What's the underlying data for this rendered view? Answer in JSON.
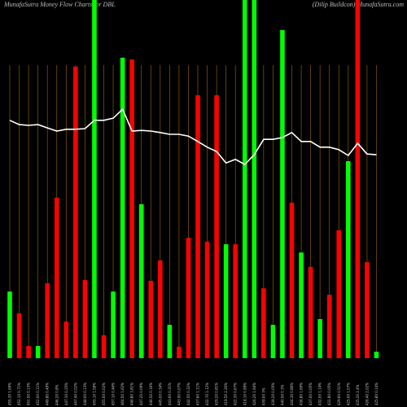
{
  "chart_data": {
    "type": "bar",
    "title": "MunafaSutra  Money Flow  Charts for DBL",
    "subtitle": "(Dilip Buildcon) MunafaSutra.com",
    "categories": [
      "455.30 1.69%",
      "452.10 0.71%",
      "451.50 0.13%",
      "452.00 0.11%",
      "449.80 0.49%",
      "446.20 0.8%",
      "447.30 0.25%",
      "447.40 0.02%",
      "448.00 0.13%",
      "455.10 1.58%",
      "455.00 0.02%",
      "457.10 0.46%",
      "464.50 1.62%",
      "446.80 3.81%",
      "447.20 0.09%",
      "446.50 0.16%",
      "445.00 0.34%",
      "443.60 0.31%",
      "443.90 0.07%",
      "442.50 0.32%",
      "437.60 1.11%",
      "432.70 1.12%",
      "429.20 0.81%",
      "419.50 2.26%",
      "422.30 0.67%",
      "418.10 0.99%",
      "426.20 1.94%",
      "439.00 3%",
      "439.20 0.05%",
      "440.50 0.3%",
      "444.30 0.86%",
      "436.80 1.69%",
      "437.00 0.05%",
      "432.00 1.14%",
      "431.80 0.05%",
      "429.60 0.51%",
      "425.00 1.07%",
      "435.20 2.4%",
      "426.40 2.02%",
      "425.80 0.14%"
    ],
    "values": [
      18.6,
      12.5,
      3.4,
      3.4,
      20.9,
      44.8,
      10.2,
      81.4,
      21.8,
      100,
      6.4,
      18.6,
      83.9,
      83.4,
      43,
      21.6,
      27.3,
      9.3,
      3.2,
      33.6,
      73.4,
      32.5,
      73.4,
      31.8,
      31.8,
      100,
      100,
      19.5,
      9.3,
      91.6,
      43.4,
      29.5,
      25.5,
      10.9,
      17.7,
      35.7,
      55,
      100,
      26.8,
      1.8
    ],
    "bar_colors": [
      "#00ff00",
      "#ff0000",
      "#ff0000",
      "#00ff00",
      "#ff0000",
      "#ff0000",
      "#ff0000",
      "#ff0000",
      "#ff0000",
      "#00ff00",
      "#ff0000",
      "#00ff00",
      "#00ff00",
      "#ff0000",
      "#00ff00",
      "#ff0000",
      "#ff0000",
      "#00ff00",
      "#ff0000",
      "#ff0000",
      "#ff0000",
      "#ff0000",
      "#ff0000",
      "#00ff00",
      "#ff0000",
      "#00ff00",
      "#00ff00",
      "#ff0000",
      "#00ff00",
      "#00ff00",
      "#ff0000",
      "#00ff00",
      "#ff0000",
      "#00ff00",
      "#ff0000",
      "#ff0000",
      "#00ff00",
      "#ff0000",
      "#ff0000",
      "#00ff00"
    ],
    "line_values": [
      66.4,
      65.2,
      65,
      65.2,
      64.3,
      63.4,
      63.9,
      63.9,
      64.1,
      66.4,
      66.4,
      67,
      69.5,
      63.4,
      63.6,
      63.4,
      63,
      62.5,
      62.5,
      62,
      60.5,
      58.9,
      57.7,
      54.5,
      55.5,
      54.1,
      56.8,
      61.1,
      61.1,
      61.6,
      63,
      60.5,
      60.5,
      58.9,
      58.9,
      58.2,
      56.6,
      60,
      57,
      56.8
    ],
    "line_color": "#ffffff",
    "grid_color": "#8a5a10",
    "ylim": [
      0,
      100
    ]
  }
}
